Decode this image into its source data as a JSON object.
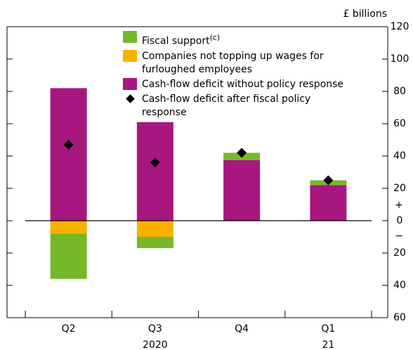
{
  "chart_data": {
    "type": "bar",
    "unit_label": "£ billions",
    "categories": [
      "Q2",
      "Q3",
      "Q4",
      "Q1"
    ],
    "category_years": [
      null,
      "2020",
      null,
      "21"
    ],
    "series": [
      {
        "name": "Fiscal support",
        "name_superscript": "(c)",
        "color": "#76b82a",
        "values": [
          -28,
          -7,
          4.5,
          3
        ]
      },
      {
        "name": "Companies not topping up wages for furloughed employees",
        "color": "#fbb000",
        "values": [
          -8,
          -10,
          0,
          0
        ]
      },
      {
        "name": "Cash-flow deficit without policy response",
        "color": "#a8177f",
        "values": [
          82,
          61,
          37.5,
          22
        ]
      }
    ],
    "points": {
      "name": "Cash-flow deficit after fiscal policy response",
      "color": "#000000",
      "values": [
        47,
        36,
        42,
        25
      ]
    },
    "ylim": [
      -60,
      120
    ],
    "yticks": [
      {
        "value": -60,
        "label": "60"
      },
      {
        "value": -40,
        "label": "40"
      },
      {
        "value": -20,
        "label": "20"
      },
      0,
      20,
      40,
      60,
      80,
      100,
      120
    ],
    "positive_sign": "+",
    "negative_sign": "−"
  }
}
